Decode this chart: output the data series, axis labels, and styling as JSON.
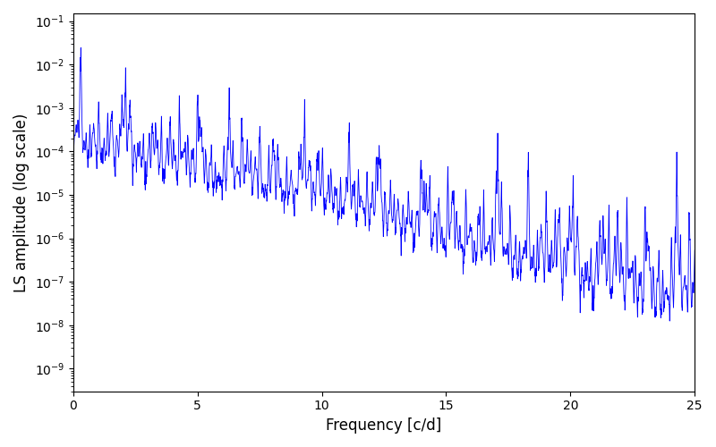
{
  "xlabel": "Frequency [c/d]",
  "ylabel": "LS amplitude (log scale)",
  "xlim": [
    0,
    25
  ],
  "ylim": [
    3e-10,
    0.15
  ],
  "line_color": "#0000ff",
  "line_width": 0.6,
  "yscale": "log",
  "figsize": [
    8.0,
    5.0
  ],
  "dpi": 100,
  "freq_max": 25.0,
  "n_points": 30000,
  "seed": 7,
  "background_color": "#ffffff"
}
